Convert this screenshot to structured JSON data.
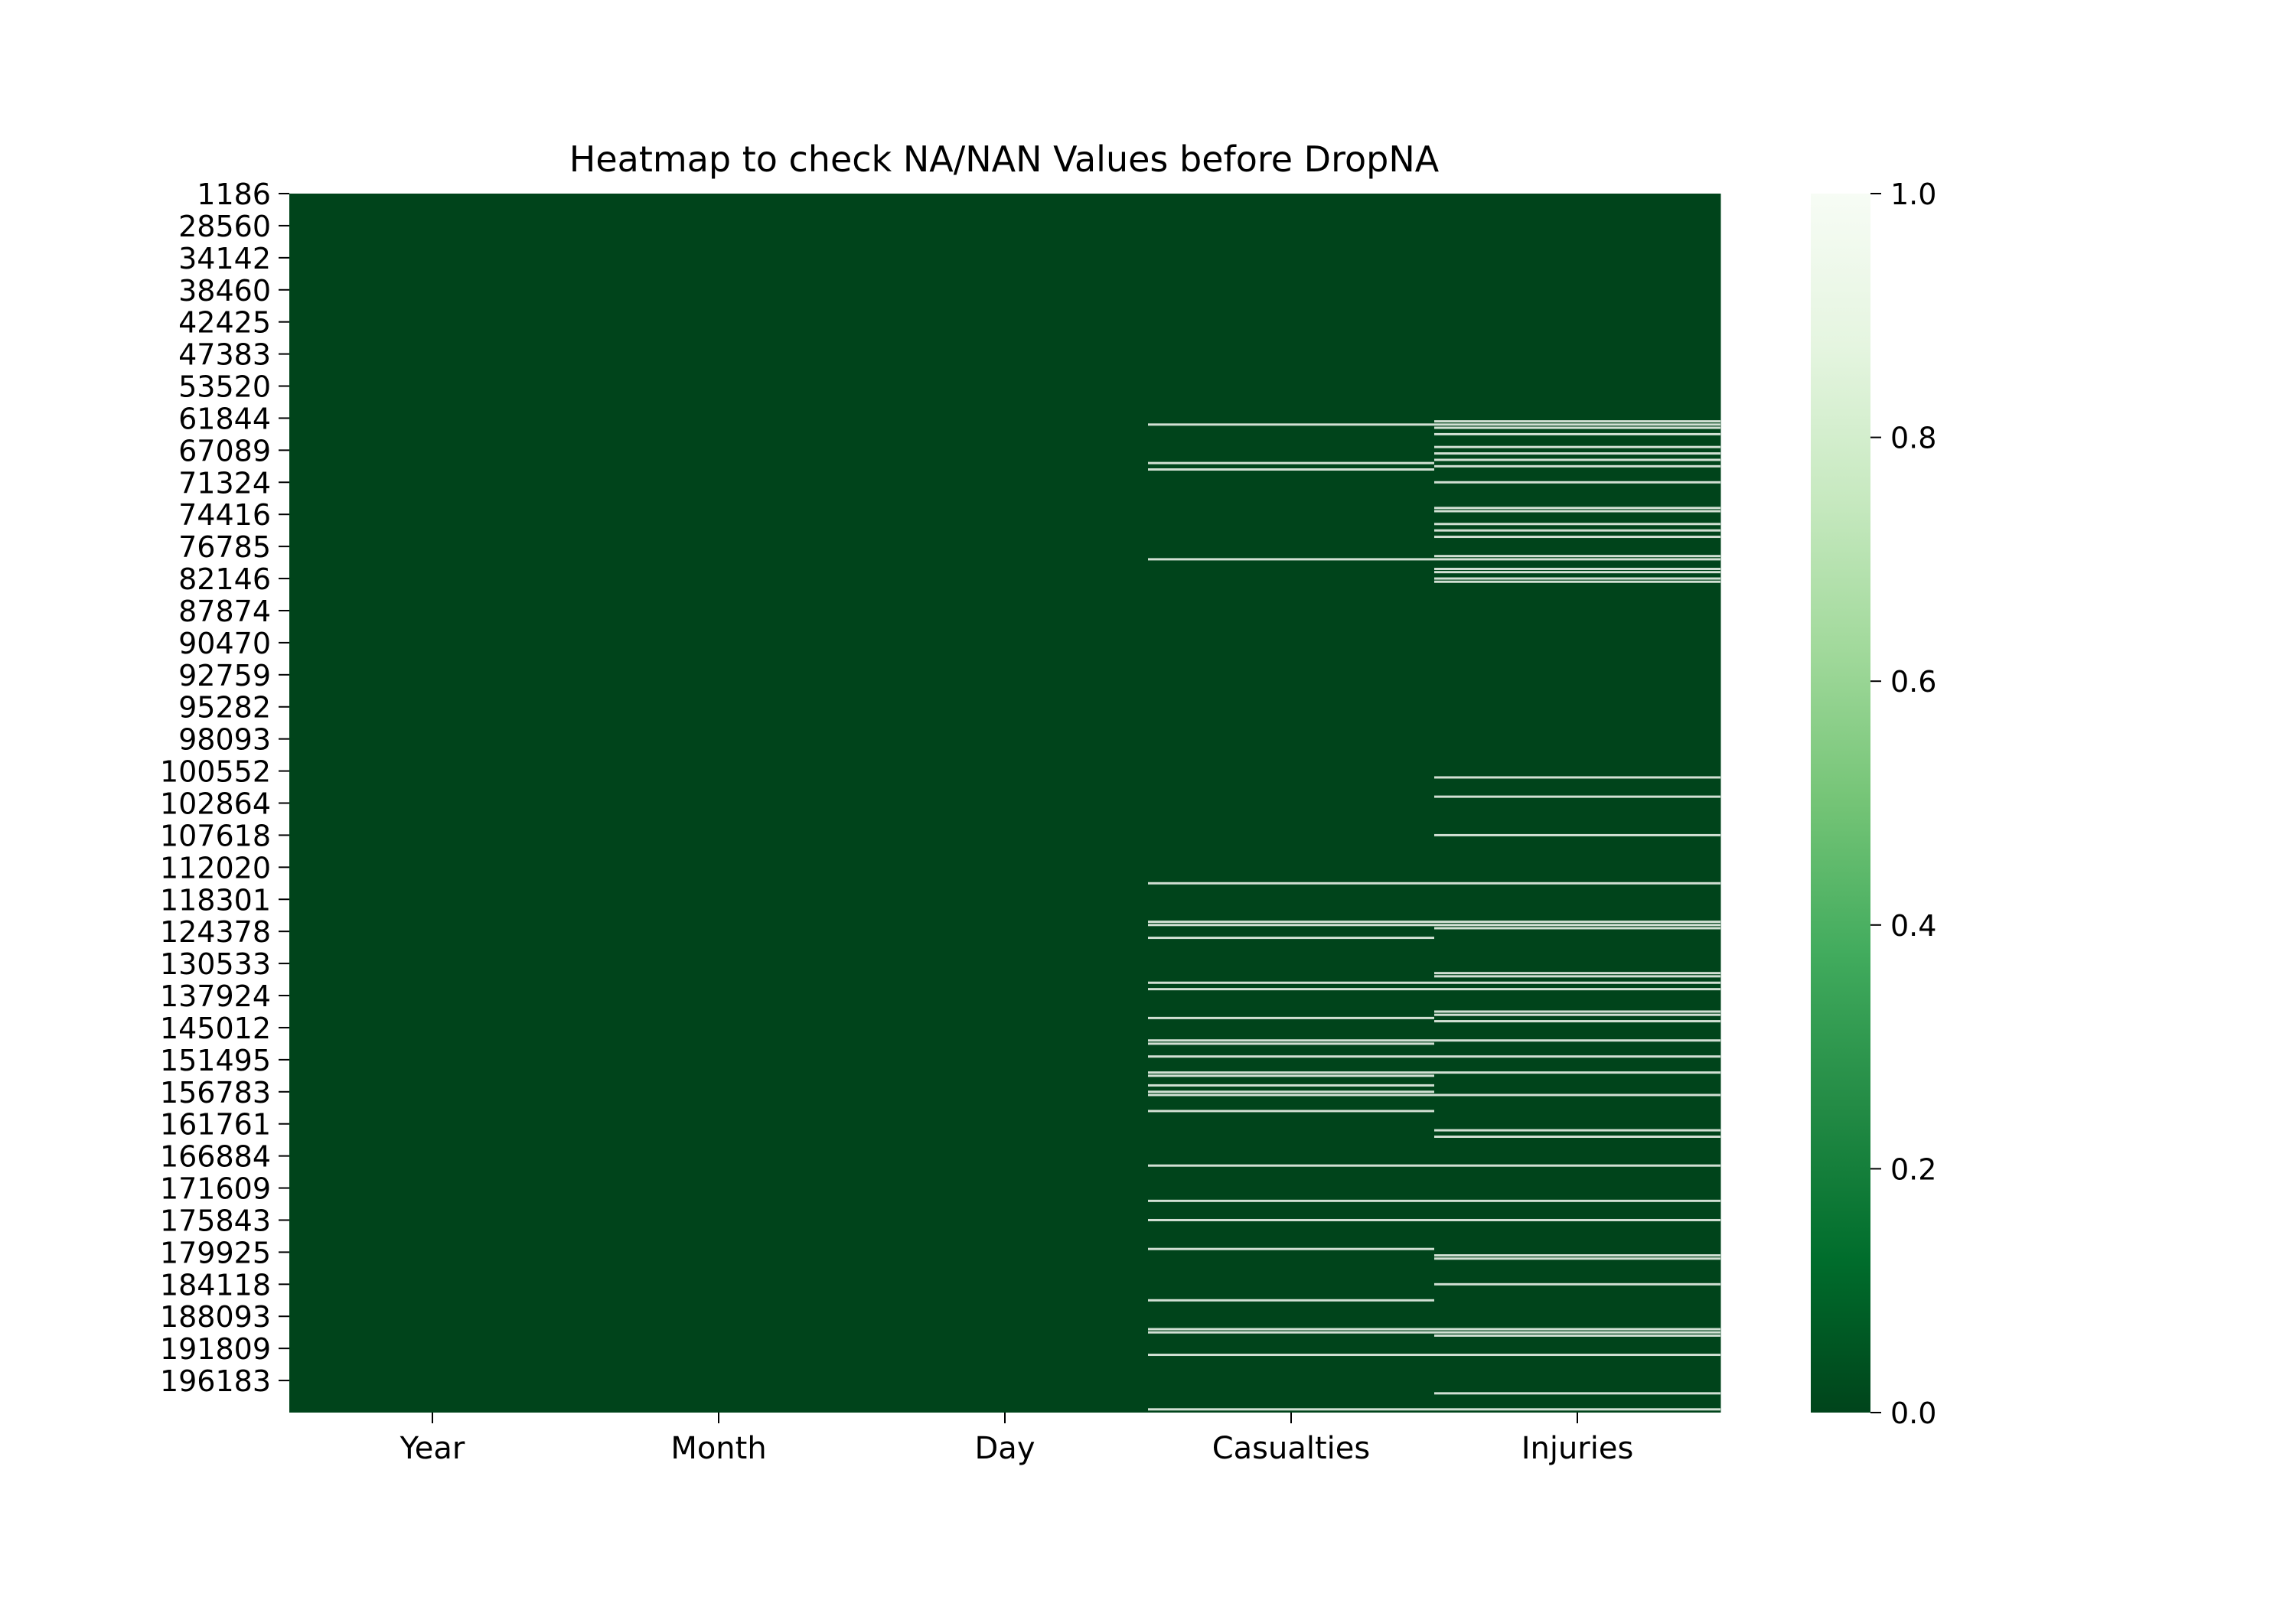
{
  "chart_data": {
    "type": "heatmap",
    "title": "Heatmap to check NA/NAN Values before DropNA",
    "xlabel": "",
    "ylabel": "",
    "columns": [
      "Year",
      "Month",
      "Day",
      "Casualties",
      "Injuries"
    ],
    "row_tick_labels": [
      "1186",
      "28560",
      "34142",
      "38460",
      "42425",
      "47383",
      "53520",
      "61844",
      "67089",
      "71324",
      "74416",
      "76785",
      "82146",
      "87874",
      "90470",
      "92759",
      "95282",
      "98093",
      "100552",
      "102864",
      "107618",
      "112020",
      "118301",
      "124378",
      "130533",
      "137924",
      "145012",
      "151495",
      "156783",
      "161761",
      "166884",
      "171609",
      "175843",
      "179925",
      "184118",
      "188093",
      "191809",
      "196183"
    ],
    "cell_value_range": [
      0,
      1
    ],
    "missing_value_rows": {
      "Year": [],
      "Month": [],
      "Day": [],
      "Casualties": [
        7.2,
        8.4,
        8.6,
        11.4,
        21.5,
        22.7,
        22.8,
        23.2,
        24.6,
        24.8,
        25.7,
        26.4,
        26.5,
        26.9,
        27.4,
        27.5,
        27.8,
        28.0,
        28.1,
        28.6,
        30.3,
        31.4,
        32.0,
        32.9,
        34.5,
        35.4,
        35.5,
        36.2,
        37.9
      ],
      "Injuries": [
        7.1,
        7.2,
        7.3,
        7.5,
        7.9,
        8.1,
        8.3,
        8.5,
        9.0,
        9.8,
        9.9,
        10.3,
        10.5,
        10.7,
        11.3,
        11.4,
        11.7,
        11.8,
        12.0,
        12.1,
        18.2,
        18.8,
        20.0,
        21.5,
        22.7,
        22.8,
        22.9,
        24.3,
        24.4,
        24.6,
        24.8,
        25.5,
        25.6,
        25.8,
        26.4,
        26.9,
        27.4,
        28.1,
        29.2,
        29.4,
        30.3,
        31.4,
        32.0,
        33.1,
        33.2,
        34.0,
        35.4,
        35.5,
        35.6,
        36.2,
        37.4,
        37.9
      ]
    },
    "colorbar": {
      "ticks": [
        "0.0",
        "0.2",
        "0.4",
        "0.6",
        "0.8",
        "1.0"
      ],
      "range": [
        0,
        1
      ]
    },
    "colormap": {
      "low": "#00441b",
      "high": "#f7fcf5",
      "stops": [
        "#00441b",
        "#006d2c",
        "#238b45",
        "#41ab5d",
        "#74c476",
        "#a1d99b",
        "#c7e9c0",
        "#e5f5e0",
        "#f7fcf5"
      ]
    }
  }
}
